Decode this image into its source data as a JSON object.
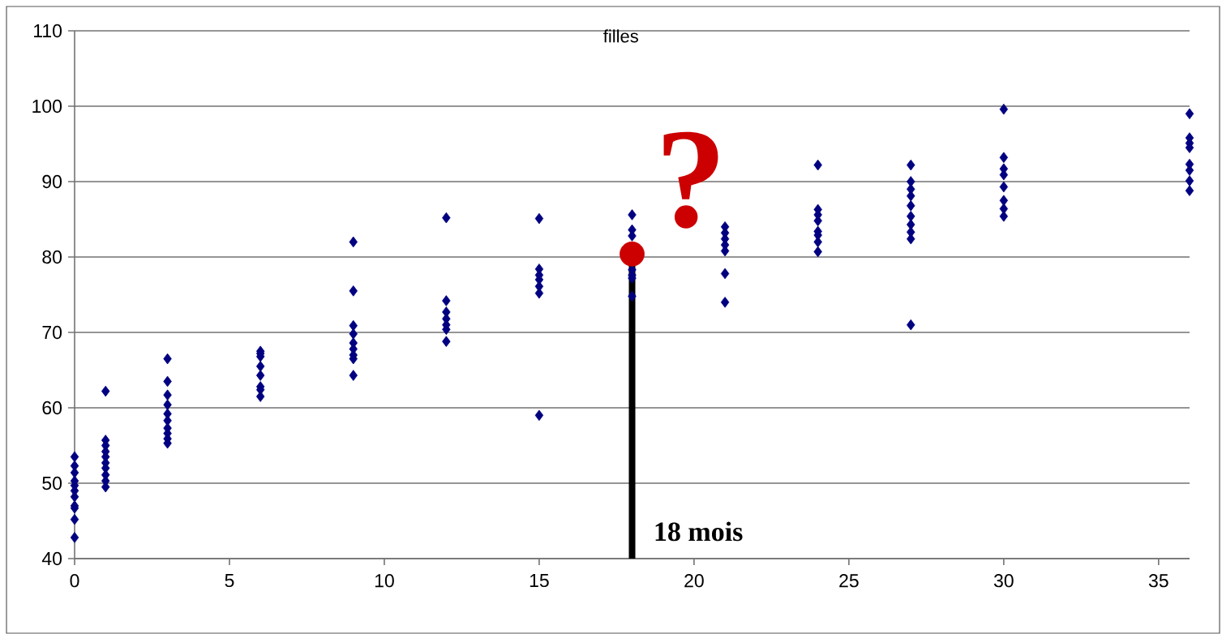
{
  "chart_data": {
    "type": "scatter",
    "title": "filles",
    "annotations": [
      "?"
    ],
    "xlim": [
      0,
      36
    ],
    "ylim": [
      40,
      110
    ],
    "xticks": [
      0,
      5,
      10,
      15,
      20,
      25,
      30,
      35
    ],
    "yticks": [
      40,
      50,
      60,
      70,
      80,
      90,
      100,
      110
    ],
    "grid": "y",
    "ref_lines": [
      {
        "axis": "x",
        "value": 18,
        "label": "18 mois",
        "color": "#000000"
      }
    ],
    "series": [
      {
        "color": "#000080",
        "marker": "diamond",
        "x": [
          0,
          0,
          0,
          0,
          0,
          0,
          0,
          0,
          0,
          0,
          0,
          1,
          1,
          1,
          1,
          1,
          1,
          1,
          1,
          1,
          1,
          3,
          3,
          3,
          3,
          3,
          3,
          3,
          3,
          3,
          3,
          6,
          6,
          6,
          6,
          6,
          6,
          6,
          6,
          9,
          9,
          9,
          9,
          9,
          9,
          9,
          9,
          9,
          12,
          12,
          12,
          12,
          12,
          12,
          12,
          15,
          15,
          15,
          15,
          15,
          15,
          15,
          18,
          18,
          18,
          18,
          18,
          18,
          18,
          21,
          21,
          21,
          21,
          21,
          21,
          21,
          24,
          24,
          24,
          24,
          24,
          24,
          24,
          24,
          27,
          27,
          27,
          27,
          27,
          27,
          27,
          27,
          27,
          27,
          30,
          30,
          30,
          30,
          30,
          30,
          30,
          30,
          36,
          36,
          36,
          36,
          36,
          36,
          36,
          36
        ],
        "values": [
          53.5,
          52.3,
          51.4,
          50.3,
          49.7,
          49.0,
          48.2,
          47.0,
          46.7,
          45.2,
          42.8,
          62.2,
          55.7,
          55.0,
          54.2,
          53.5,
          52.7,
          52.0,
          51.1,
          50.3,
          49.5,
          66.5,
          63.5,
          61.7,
          60.4,
          59.2,
          58.3,
          57.3,
          56.6,
          55.9,
          55.3,
          67.5,
          67.2,
          66.8,
          65.5,
          64.3,
          62.8,
          62.4,
          61.5,
          82.0,
          75.5,
          70.9,
          69.8,
          68.6,
          67.8,
          67.0,
          66.5,
          64.3,
          85.2,
          74.2,
          72.7,
          71.8,
          71.0,
          70.4,
          68.8,
          85.1,
          78.4,
          77.6,
          77.0,
          76.1,
          75.2,
          59.0,
          85.6,
          83.6,
          82.8,
          78.3,
          77.6,
          77.2,
          74.8,
          84.0,
          83.2,
          82.4,
          81.6,
          80.8,
          77.8,
          74.0,
          92.2,
          86.3,
          85.6,
          84.8,
          83.4,
          82.9,
          82.0,
          80.7,
          92.2,
          90.0,
          89.0,
          88.1,
          86.8,
          85.4,
          84.3,
          83.3,
          82.4,
          71.0,
          99.6,
          93.2,
          91.7,
          90.9,
          89.3,
          87.5,
          86.4,
          85.4,
          99.0,
          95.8,
          95.1,
          94.5,
          92.3,
          91.5,
          90.1,
          88.8
        ]
      },
      {
        "color": "#cc0000",
        "marker": "circle",
        "x": [
          18
        ],
        "values": [
          80.4
        ]
      }
    ]
  }
}
